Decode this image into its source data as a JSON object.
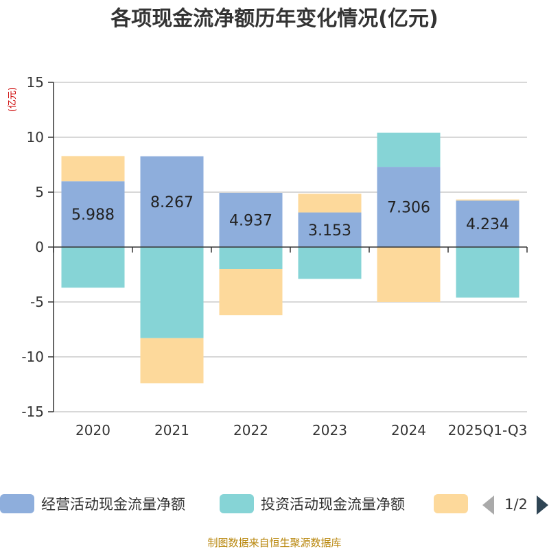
{
  "chart_data": {
    "type": "bar",
    "stacked": true,
    "title": "各项现金流净额历年变化情况(亿元)",
    "ylabel": "(亿元)",
    "xlabel": "",
    "ylim": [
      -15,
      15
    ],
    "yticks": [
      15,
      10,
      5,
      0,
      -5,
      -10,
      -15
    ],
    "ytick_labels": [
      "15",
      "10",
      "5",
      "0",
      "-5",
      "-10",
      "-15"
    ],
    "categories": [
      "2020",
      "2021",
      "2022",
      "2023",
      "2024",
      "2025Q1-Q3"
    ],
    "grid": true,
    "series": [
      {
        "name": "经营活动现金流量净额",
        "color": "#8eaedc",
        "values": [
          5.988,
          8.267,
          4.937,
          3.153,
          7.306,
          4.234
        ],
        "labels": [
          "5.988",
          "8.267",
          "4.937",
          "3.153",
          "7.306",
          "4.234"
        ]
      },
      {
        "name": "投资活动现金流量净额",
        "color": "#86d4d6",
        "values": [
          -3.7,
          -8.3,
          -2.0,
          -2.9,
          3.1,
          -4.6
        ]
      },
      {
        "name": "",
        "color": "#fdd99b",
        "values": [
          2.3,
          -4.1,
          -4.2,
          1.7,
          -5.0,
          0.1
        ]
      }
    ]
  },
  "legend": {
    "page": "1/2",
    "prev_icon": "triangle-left-icon",
    "next_icon": "triangle-right-icon"
  },
  "source": "制图数据来自恒生聚源数据库"
}
